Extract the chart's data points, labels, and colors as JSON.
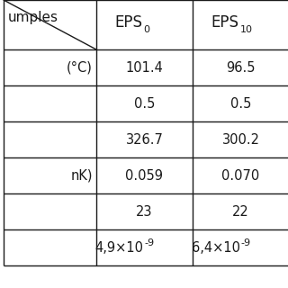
{
  "col_headers": [
    "EPS_0",
    "EPS_{10}"
  ],
  "row_labels": [
    "(°C)",
    "",
    "",
    "nK)",
    "",
    ""
  ],
  "cell_values": [
    [
      "101.4",
      "96.5"
    ],
    [
      "0.5",
      "0.5"
    ],
    [
      "326.7",
      "300.2"
    ],
    [
      "0.059",
      "0.070"
    ],
    [
      "23",
      "22"
    ],
    [
      "4,9×10^{-9}",
      "6,4×10^{-9}"
    ]
  ],
  "header_label": "umples",
  "background_color": "#ffffff",
  "line_color": "#1a1a1a",
  "text_color": "#1a1a1a",
  "font_size": 10.5,
  "header_font_size": 12,
  "sub_font_size": 8
}
